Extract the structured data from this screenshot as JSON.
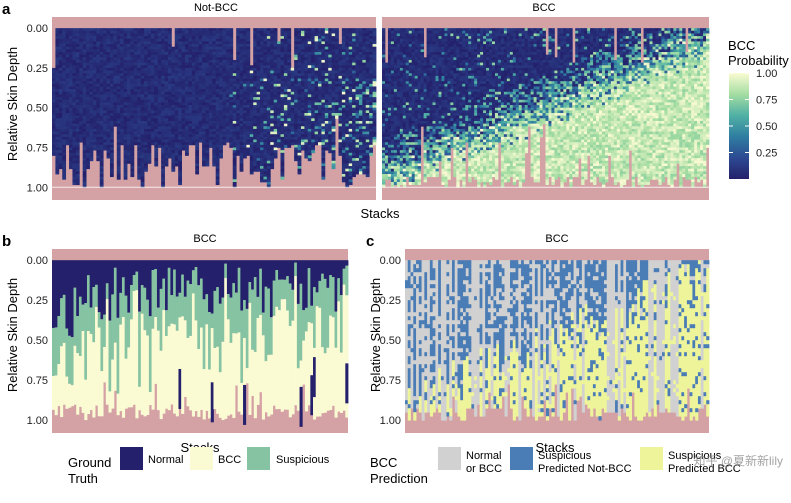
{
  "colors": {
    "dark_navy": "#24206b",
    "light_yellow": "#fbfbd3",
    "teal": "#85c3a3",
    "pink": "#d4a1a5",
    "gray": "#d1d1d1",
    "blue": "#4a7cb6",
    "yellow_green": "#eef49a",
    "gradient": [
      "#24206b",
      "#2c4a92",
      "#2f7ea1",
      "#51b0a4",
      "#a5dda2",
      "#fbfbd3"
    ]
  },
  "chart_data": [
    {
      "type": "heatmap",
      "panel": "a",
      "title": "",
      "xlabel": "Stacks",
      "ylabel": "Relative Skin Depth",
      "facets": [
        "Not-BCC",
        "BCC"
      ],
      "yticks": [
        "0.00",
        "0.25",
        "0.50",
        "0.75",
        "1.00"
      ],
      "ylim": [
        0,
        1.08
      ],
      "colorbar": {
        "title_line1": "BCC",
        "title_line2": "Probability",
        "ticks": [
          "0.25",
          "0.50",
          "0.75",
          "1.00"
        ],
        "range": [
          0,
          1
        ]
      },
      "n_stacks": [
        95,
        110
      ]
    },
    {
      "type": "heatmap",
      "panel": "b",
      "title": "",
      "xlabel": "Stacks",
      "ylabel": "Relative Skin Depth",
      "facets": [
        "BCC"
      ],
      "yticks": [
        "0.00",
        "0.25",
        "0.50",
        "0.75",
        "1.00"
      ],
      "ylim": [
        0,
        1.08
      ],
      "legend": {
        "title_line1": "Ground",
        "title_line2": "Truth",
        "items": [
          "Normal",
          "BCC",
          "Suspicious"
        ]
      },
      "n_stacks": 110
    },
    {
      "type": "heatmap",
      "panel": "c",
      "title": "",
      "xlabel": "Stacks",
      "ylabel": "Relative Skin Depth",
      "facets": [
        "BCC"
      ],
      "yticks": [
        "0.00",
        "0.25",
        "0.50",
        "0.75",
        "1.00"
      ],
      "ylim": [
        0,
        1.08
      ],
      "legend": {
        "title_line1": "BCC",
        "title_line2": "Prediction",
        "items": [
          {
            "line1": "Normal",
            "line2": "or BCC"
          },
          {
            "line1": "Suspicious",
            "line2": "Predicted Not-BCC"
          },
          {
            "line1": "Suspicious",
            "line2": "Predicted BCC"
          }
        ]
      },
      "n_stacks": 110
    }
  ],
  "watermark": "知乎 @夏新新lily"
}
